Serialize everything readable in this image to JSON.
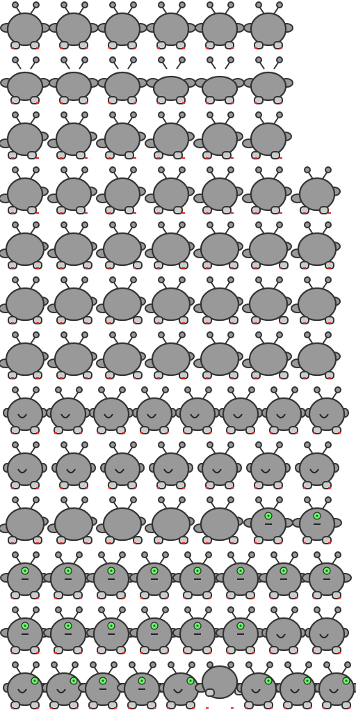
{
  "sheet": {
    "colors": {
      "background": "#ffffff",
      "body": "#999999",
      "outline": "#333333",
      "foot": "#cccccc",
      "eye": "#66ff66",
      "claw": "#ee2222"
    },
    "rows": [
      {
        "frames": [
          "squat",
          "squat",
          "squat",
          "squat",
          "squat",
          "squat"
        ]
      },
      {
        "frames": [
          "crouch",
          "crouch",
          "crouch",
          "flat",
          "flat",
          "crouch"
        ]
      },
      {
        "frames": [
          "side",
          "side",
          "side",
          "side",
          "side",
          "side"
        ]
      },
      {
        "frames": [
          "side",
          "side",
          "side",
          "side",
          "side",
          "side",
          "side"
        ]
      },
      {
        "frames": [
          "walk",
          "walk",
          "walk",
          "walk",
          "walk",
          "walk",
          "walk"
        ]
      },
      {
        "frames": [
          "walk",
          "walk",
          "walk",
          "walk",
          "walk",
          "walk",
          "walk"
        ]
      },
      {
        "frames": [
          "walk",
          "walk",
          "walk",
          "walk",
          "walk",
          "walk",
          "walk"
        ]
      },
      {
        "frames": [
          "back",
          "back",
          "back",
          "back",
          "back",
          "back",
          "back",
          "back"
        ]
      },
      {
        "frames": [
          "back",
          "back",
          "back",
          "back",
          "back",
          "back",
          "back"
        ]
      },
      {
        "frames": [
          "walk",
          "walk",
          "walk",
          "walk",
          "walk",
          "face",
          "face"
        ]
      },
      {
        "frames": [
          "face",
          "face",
          "face",
          "face",
          "face",
          "face",
          "face",
          "face"
        ]
      },
      {
        "frames": [
          "face",
          "face",
          "face",
          "face",
          "face",
          "face",
          "back",
          "back"
        ]
      },
      {
        "frames": [
          "turn",
          "turn",
          "face",
          "face",
          "turn",
          "roll",
          "turn",
          "turn",
          "turn"
        ]
      }
    ]
  }
}
